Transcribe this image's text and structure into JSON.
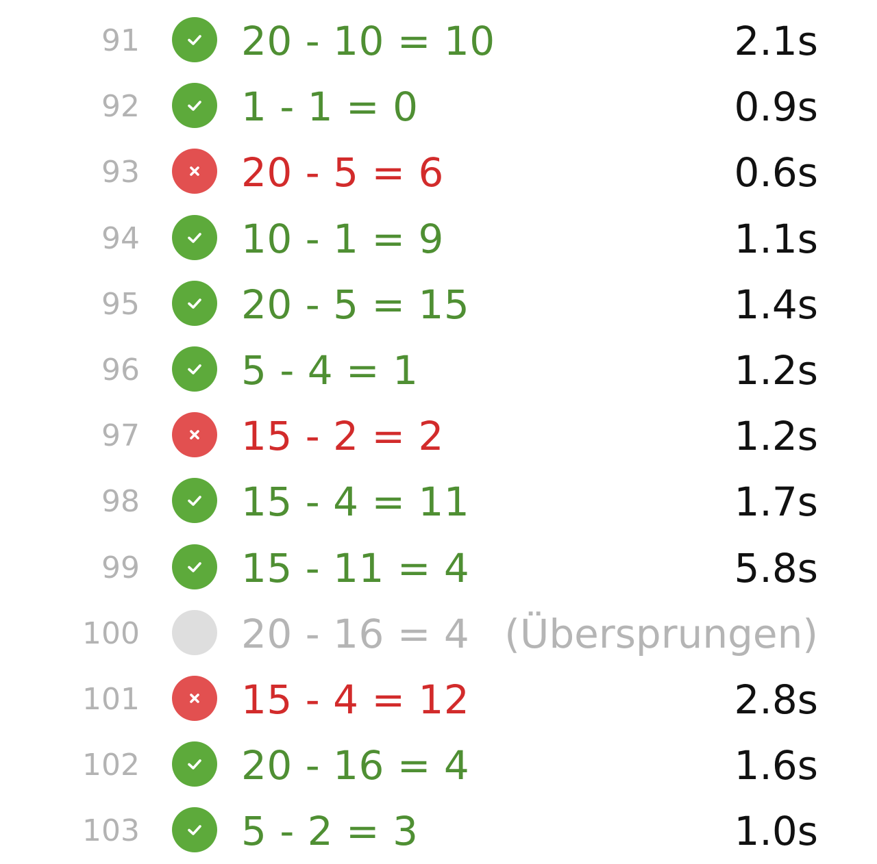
{
  "rows": [
    {
      "num": "91",
      "equation": "20 - 10 = 10",
      "time": "2.1s",
      "status": "correct",
      "status_icon": "check-icon"
    },
    {
      "num": "92",
      "equation": "1 - 1 = 0",
      "time": "0.9s",
      "status": "correct",
      "status_icon": "check-icon"
    },
    {
      "num": "93",
      "equation": "20 - 5 = 6",
      "time": "0.6s",
      "status": "wrong",
      "status_icon": "cross-icon"
    },
    {
      "num": "94",
      "equation": "10 - 1 = 9",
      "time": "1.1s",
      "status": "correct",
      "status_icon": "check-icon"
    },
    {
      "num": "95",
      "equation": "20 - 5 = 15",
      "time": "1.4s",
      "status": "correct",
      "status_icon": "check-icon"
    },
    {
      "num": "96",
      "equation": "5 - 4 = 1",
      "time": "1.2s",
      "status": "correct",
      "status_icon": "check-icon"
    },
    {
      "num": "97",
      "equation": "15 - 2 = 2",
      "time": "1.2s",
      "status": "wrong",
      "status_icon": "cross-icon"
    },
    {
      "num": "98",
      "equation": "15 - 4 = 11",
      "time": "1.7s",
      "status": "correct",
      "status_icon": "check-icon"
    },
    {
      "num": "99",
      "equation": "15 - 11 = 4",
      "time": "5.8s",
      "status": "correct",
      "status_icon": "check-icon"
    },
    {
      "num": "100",
      "equation": "20 - 16 = 4",
      "time": "(Übersprungen)",
      "status": "skipped",
      "status_icon": "skipped-circle-icon"
    },
    {
      "num": "101",
      "equation": "15 - 4 = 12",
      "time": "2.8s",
      "status": "wrong",
      "status_icon": "cross-icon"
    },
    {
      "num": "102",
      "equation": "20 - 16 = 4",
      "time": "1.6s",
      "status": "correct",
      "status_icon": "check-icon"
    },
    {
      "num": "103",
      "equation": "5 - 2 = 3",
      "time": "1.0s",
      "status": "correct",
      "status_icon": "check-icon"
    }
  ],
  "colors": {
    "correct_icon": "#5daa3b",
    "correct_text": "#4f8f33",
    "wrong_icon": "#e25050",
    "wrong_text": "#d22b2b",
    "skipped_icon": "#dedede",
    "skipped_text": "#b5b5b5",
    "row_number": "#b3b3b3",
    "time_text": "#111111"
  }
}
